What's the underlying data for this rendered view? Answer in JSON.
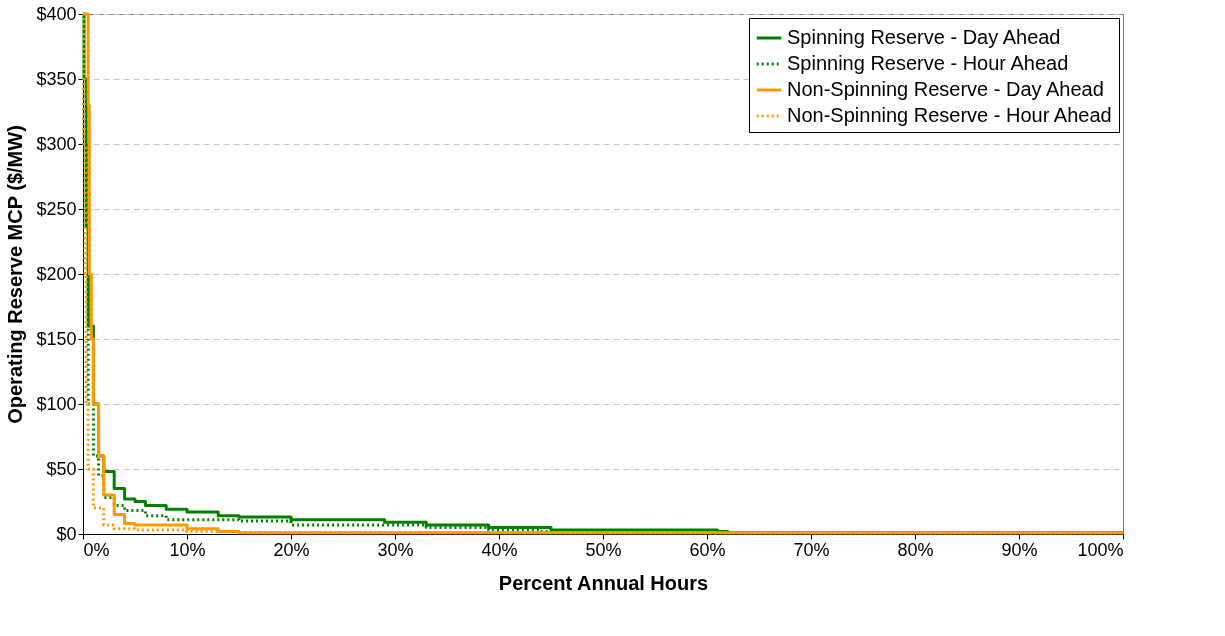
{
  "chart_data": {
    "type": "step",
    "xlabel": "Percent Annual Hours",
    "ylabel": "Operating Reserve MCP ($/MW)",
    "xlim": [
      0,
      100
    ],
    "ylim": [
      0,
      400
    ],
    "xticks": [
      {
        "value": 0,
        "label": "0%"
      },
      {
        "value": 10,
        "label": "10%"
      },
      {
        "value": 20,
        "label": "20%"
      },
      {
        "value": 30,
        "label": "30%"
      },
      {
        "value": 40,
        "label": "40%"
      },
      {
        "value": 50,
        "label": "50%"
      },
      {
        "value": 60,
        "label": "60%"
      },
      {
        "value": 70,
        "label": "70%"
      },
      {
        "value": 80,
        "label": "80%"
      },
      {
        "value": 90,
        "label": "90%"
      },
      {
        "value": 100,
        "label": "100%"
      }
    ],
    "yticks": [
      {
        "value": 0,
        "label": "$0"
      },
      {
        "value": 50,
        "label": "$50"
      },
      {
        "value": 100,
        "label": "$100"
      },
      {
        "value": 150,
        "label": "$150"
      },
      {
        "value": 200,
        "label": "$200"
      },
      {
        "value": 250,
        "label": "$250"
      },
      {
        "value": 300,
        "label": "$300"
      },
      {
        "value": 350,
        "label": "$350"
      },
      {
        "value": 400,
        "label": "$400"
      }
    ],
    "grid": "y",
    "legend": "top right",
    "marker": "none",
    "series": [
      {
        "name": "Spinning Reserve - Day Ahead",
        "color": "#008000",
        "line_style": "solid",
        "x": [
          0,
          0.1,
          0.3,
          0.5,
          1,
          1.5,
          2,
          3,
          4,
          5,
          6,
          8,
          10,
          13,
          15,
          20,
          29,
          33,
          39,
          45,
          61,
          62,
          100
        ],
        "values": [
          400,
          350,
          237,
          160,
          100,
          60,
          48,
          35,
          27,
          25,
          22,
          19,
          17,
          14,
          13,
          11,
          9,
          7,
          5,
          3,
          2,
          1,
          1
        ]
      },
      {
        "name": "Spinning Reserve - Hour Ahead",
        "color": "#008000",
        "line_style": "dotted",
        "x": [
          0,
          0.1,
          0.5,
          1,
          1.5,
          2,
          3,
          4,
          6,
          8,
          15,
          20,
          33,
          39,
          44,
          60,
          100
        ],
        "values": [
          350,
          300,
          100,
          60,
          45,
          28,
          22,
          18,
          14,
          11,
          10,
          7,
          5,
          3,
          2,
          1,
          1
        ]
      },
      {
        "name": "Non-Spinning Reserve - Day Ahead",
        "color": "#ff9900",
        "line_style": "solid",
        "x": [
          0,
          0.5,
          0.6,
          0.8,
          1,
          1.5,
          2,
          3,
          4,
          5,
          10,
          13,
          15,
          100
        ],
        "values": [
          400,
          330,
          200,
          150,
          100,
          60,
          30,
          15,
          8,
          7,
          4,
          2,
          1,
          1
        ]
      },
      {
        "name": "Non-Spinning Reserve - Hour Ahead",
        "color": "#ff9900",
        "line_style": "dotted",
        "x": [
          0,
          0.1,
          0.2,
          0.3,
          0.5,
          1,
          2,
          3,
          5,
          10,
          15,
          100
        ],
        "values": [
          400,
          300,
          200,
          100,
          50,
          20,
          7,
          4,
          3,
          2,
          1,
          0
        ]
      }
    ]
  }
}
